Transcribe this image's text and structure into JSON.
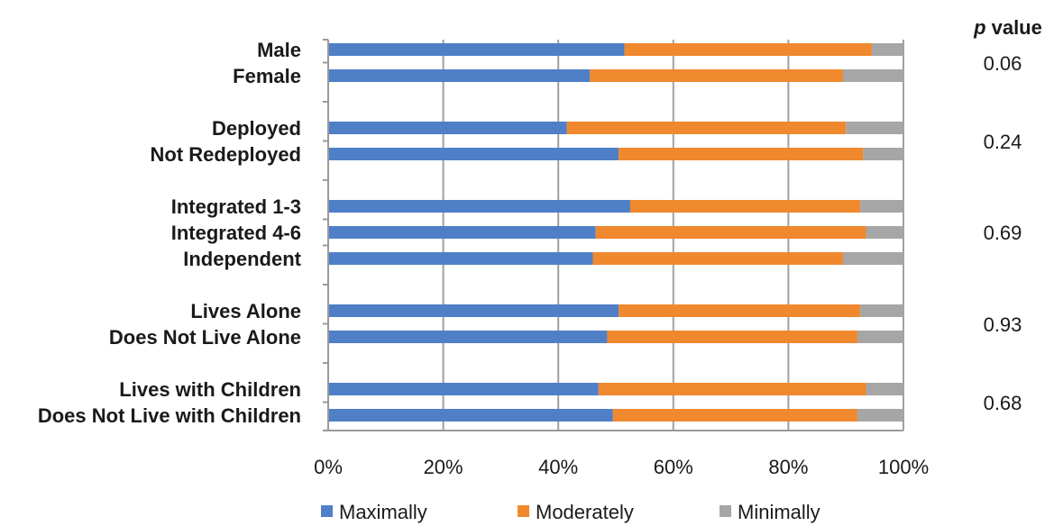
{
  "chart_data": {
    "type": "bar",
    "orientation": "horizontal",
    "stacked": true,
    "percent": true,
    "categories": [
      "Male",
      "Female",
      "Deployed",
      "Not Redeployed",
      "Integrated 1-3",
      "Integrated 4-6",
      "Independent",
      "Lives Alone",
      "Does Not Live Alone",
      "Lives with Children",
      "Does Not Live with Children"
    ],
    "groups": [
      {
        "members": [
          "Male",
          "Female"
        ],
        "p_value": "0.06"
      },
      {
        "members": [
          "Deployed",
          "Not Redeployed"
        ],
        "p_value": "0.24"
      },
      {
        "members": [
          "Integrated 1-3",
          "Integrated 4-6",
          "Independent"
        ],
        "p_value": "0.69"
      },
      {
        "members": [
          "Lives Alone",
          "Does Not Live Alone"
        ],
        "p_value": "0.93"
      },
      {
        "members": [
          "Lives with Children",
          "Does Not Live with Children"
        ],
        "p_value": "0.68"
      }
    ],
    "series": [
      {
        "name": "Maximally",
        "color": "#4f7fc7",
        "values": [
          51.5,
          45.5,
          41.5,
          50.5,
          52.5,
          46.5,
          46,
          50.5,
          48.5,
          47,
          49.5
        ]
      },
      {
        "name": "Moderately",
        "color": "#f0882d",
        "values": [
          43,
          44,
          48.5,
          42.5,
          40,
          47,
          43.5,
          42,
          43.5,
          46.5,
          42.5
        ]
      },
      {
        "name": "Minimally",
        "color": "#a6a6a6",
        "values": [
          5.5,
          10.5,
          10,
          7,
          7.5,
          6.5,
          10.5,
          7.5,
          8,
          6.5,
          8
        ]
      }
    ],
    "xlim": [
      0,
      100
    ],
    "x_ticks": [
      "0%",
      "20%",
      "40%",
      "60%",
      "80%",
      "100%"
    ],
    "p_value_header": {
      "italic": "p",
      "text": "value"
    },
    "grid": true,
    "legend_position": "bottom"
  }
}
